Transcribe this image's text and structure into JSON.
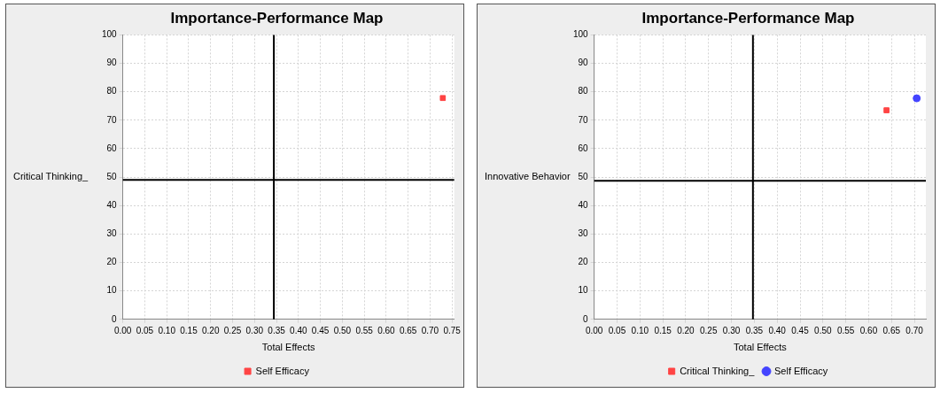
{
  "chart_data": [
    {
      "type": "scatter",
      "title": "Importance-Performance Map",
      "xlabel": "Total Effects",
      "ylabel": "Critical Thinking_",
      "series": [
        {
          "name": "Self Efficacy",
          "color": "#ff4444",
          "marker": "square",
          "x": [
            0.729
          ],
          "values": [
            77.8
          ]
        }
      ],
      "xlim": [
        0,
        0.755
      ],
      "xticks": [
        {
          "value": 0,
          "label": "0.00"
        },
        {
          "value": 0.05,
          "label": "0.05"
        },
        {
          "value": 0.1,
          "label": "0.10"
        },
        {
          "value": 0.15,
          "label": "0.15"
        },
        {
          "value": 0.2,
          "label": "0.20"
        },
        {
          "value": 0.25,
          "label": "0.25"
        },
        {
          "value": 0.3,
          "label": "0.30"
        },
        {
          "value": 0.35,
          "label": "0.35"
        },
        {
          "value": 0.4,
          "label": "0.40"
        },
        {
          "value": 0.45,
          "label": "0.45"
        },
        {
          "value": 0.5,
          "label": "0.50"
        },
        {
          "value": 0.55,
          "label": "0.55"
        },
        {
          "value": 0.6,
          "label": "0.60"
        },
        {
          "value": 0.65,
          "label": "0.65"
        },
        {
          "value": 0.7,
          "label": "0.70"
        },
        {
          "value": 0.75,
          "label": "0.75"
        }
      ],
      "ylim": [
        0,
        100
      ],
      "yticks": [
        0,
        10,
        20,
        30,
        40,
        50,
        60,
        70,
        80,
        90,
        100
      ],
      "ref_lines": [
        {
          "axis": "x",
          "value": 0.344,
          "color": "#000000"
        },
        {
          "axis": "y",
          "value": 49.0,
          "color": "#000000"
        }
      ],
      "grid": true,
      "legend": "bottom"
    },
    {
      "type": "scatter",
      "title": "Importance-Performance Map",
      "xlabel": "Total Effects",
      "ylabel": "Innovative Behavior",
      "series": [
        {
          "name": "Critical Thinking_",
          "color": "#ff4444",
          "marker": "square",
          "x": [
            0.639
          ],
          "values": [
            73.5
          ]
        },
        {
          "name": "Self Efficacy",
          "color": "#4444ff",
          "marker": "circle",
          "x": [
            0.705
          ],
          "values": [
            77.7
          ]
        }
      ],
      "xlim": [
        0,
        0.725
      ],
      "xticks": [
        {
          "value": 0,
          "label": "0.00"
        },
        {
          "value": 0.05,
          "label": "0.05"
        },
        {
          "value": 0.1,
          "label": "0.10"
        },
        {
          "value": 0.15,
          "label": "0.15"
        },
        {
          "value": 0.2,
          "label": "0.20"
        },
        {
          "value": 0.25,
          "label": "0.25"
        },
        {
          "value": 0.3,
          "label": "0.30"
        },
        {
          "value": 0.35,
          "label": "0.35"
        },
        {
          "value": 0.4,
          "label": "0.40"
        },
        {
          "value": 0.45,
          "label": "0.45"
        },
        {
          "value": 0.5,
          "label": "0.50"
        },
        {
          "value": 0.55,
          "label": "0.55"
        },
        {
          "value": 0.6,
          "label": "0.60"
        },
        {
          "value": 0.65,
          "label": "0.65"
        },
        {
          "value": 0.7,
          "label": "0.70"
        }
      ],
      "ylim": [
        0,
        100
      ],
      "yticks": [
        0,
        10,
        20,
        30,
        40,
        50,
        60,
        70,
        80,
        90,
        100
      ],
      "ref_lines": [
        {
          "axis": "x",
          "value": 0.347,
          "color": "#000000"
        },
        {
          "axis": "y",
          "value": 48.7,
          "color": "#000000"
        }
      ],
      "grid": true,
      "legend": "bottom"
    }
  ]
}
